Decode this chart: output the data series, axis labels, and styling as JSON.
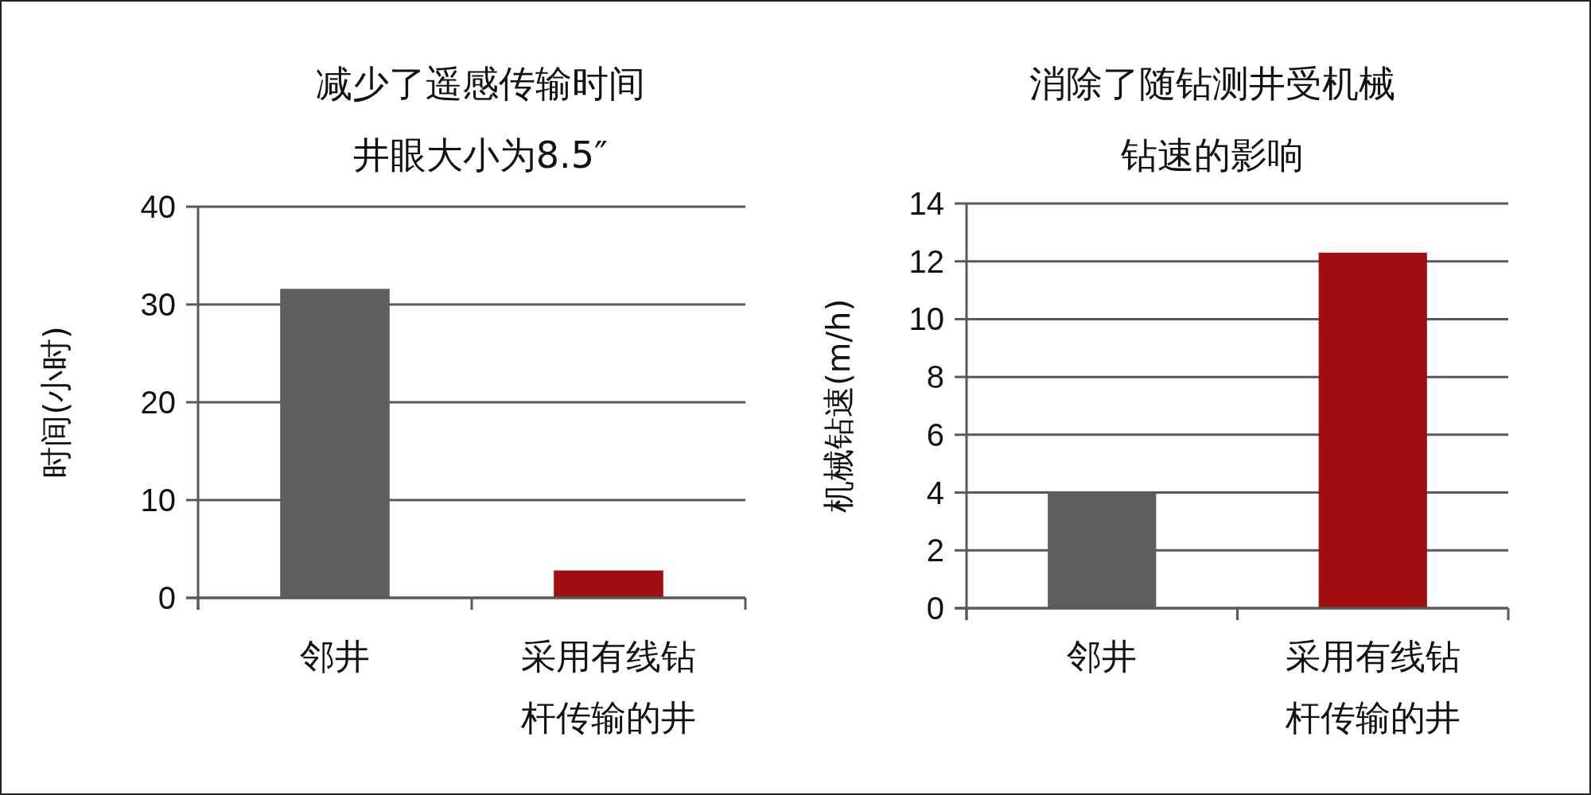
{
  "chart_data": [
    {
      "type": "bar",
      "title": "减少了遥感传输时间",
      "subtitle": "井眼大小为8.5″",
      "ylabel": "时间(小时)",
      "categories": [
        "邻井",
        "采用有线钻杆传输的井"
      ],
      "values": [
        31.6,
        2.8
      ],
      "colors": [
        "#5e5e5e",
        "#a10e11"
      ],
      "ylim": [
        0,
        40
      ],
      "yticks": [
        0,
        10,
        20,
        30,
        40
      ],
      "grid": "y"
    },
    {
      "type": "bar",
      "title": "消除了随钻测井受机械钻速的影响",
      "ylabel": "机械钻速(m/h)",
      "categories": [
        "邻井",
        "采用有线钻杆传输的井"
      ],
      "values": [
        4.0,
        12.3
      ],
      "colors": [
        "#5e5e5e",
        "#a10e11"
      ],
      "ylim": [
        0,
        14
      ],
      "yticks": [
        0,
        2,
        4,
        6,
        8,
        10,
        12,
        14
      ],
      "grid": "y"
    }
  ]
}
